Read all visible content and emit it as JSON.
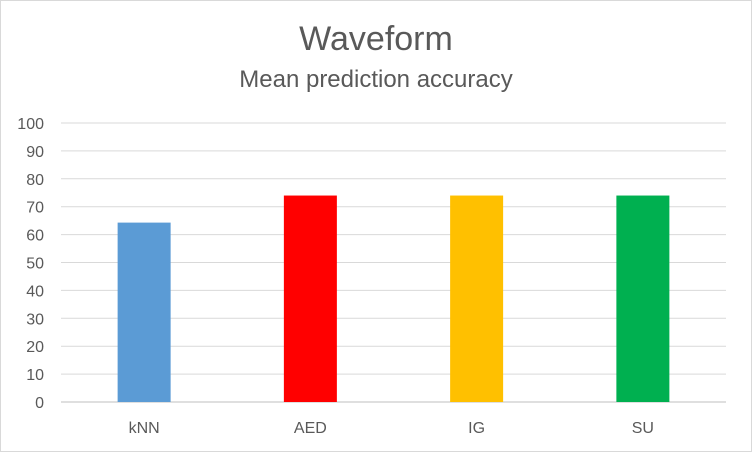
{
  "chart_data": {
    "type": "bar",
    "title": "Waveform",
    "subtitle": "Mean prediction accuracy",
    "categories": [
      "kNN",
      "AED",
      "IG",
      "SU"
    ],
    "values": [
      64.3,
      74.0,
      74.0,
      74.0
    ],
    "colors": [
      "#5b9bd5",
      "#ff0000",
      "#ffc000",
      "#00b050"
    ],
    "ylim": [
      0,
      100
    ],
    "yticks": [
      "0",
      "10",
      "20",
      "30",
      "40",
      "50",
      "60",
      "70",
      "80",
      "90",
      "100"
    ],
    "ytick_values": [
      0,
      10,
      20,
      30,
      40,
      50,
      60,
      70,
      80,
      90,
      100
    ],
    "grid": true,
    "legend": false
  }
}
